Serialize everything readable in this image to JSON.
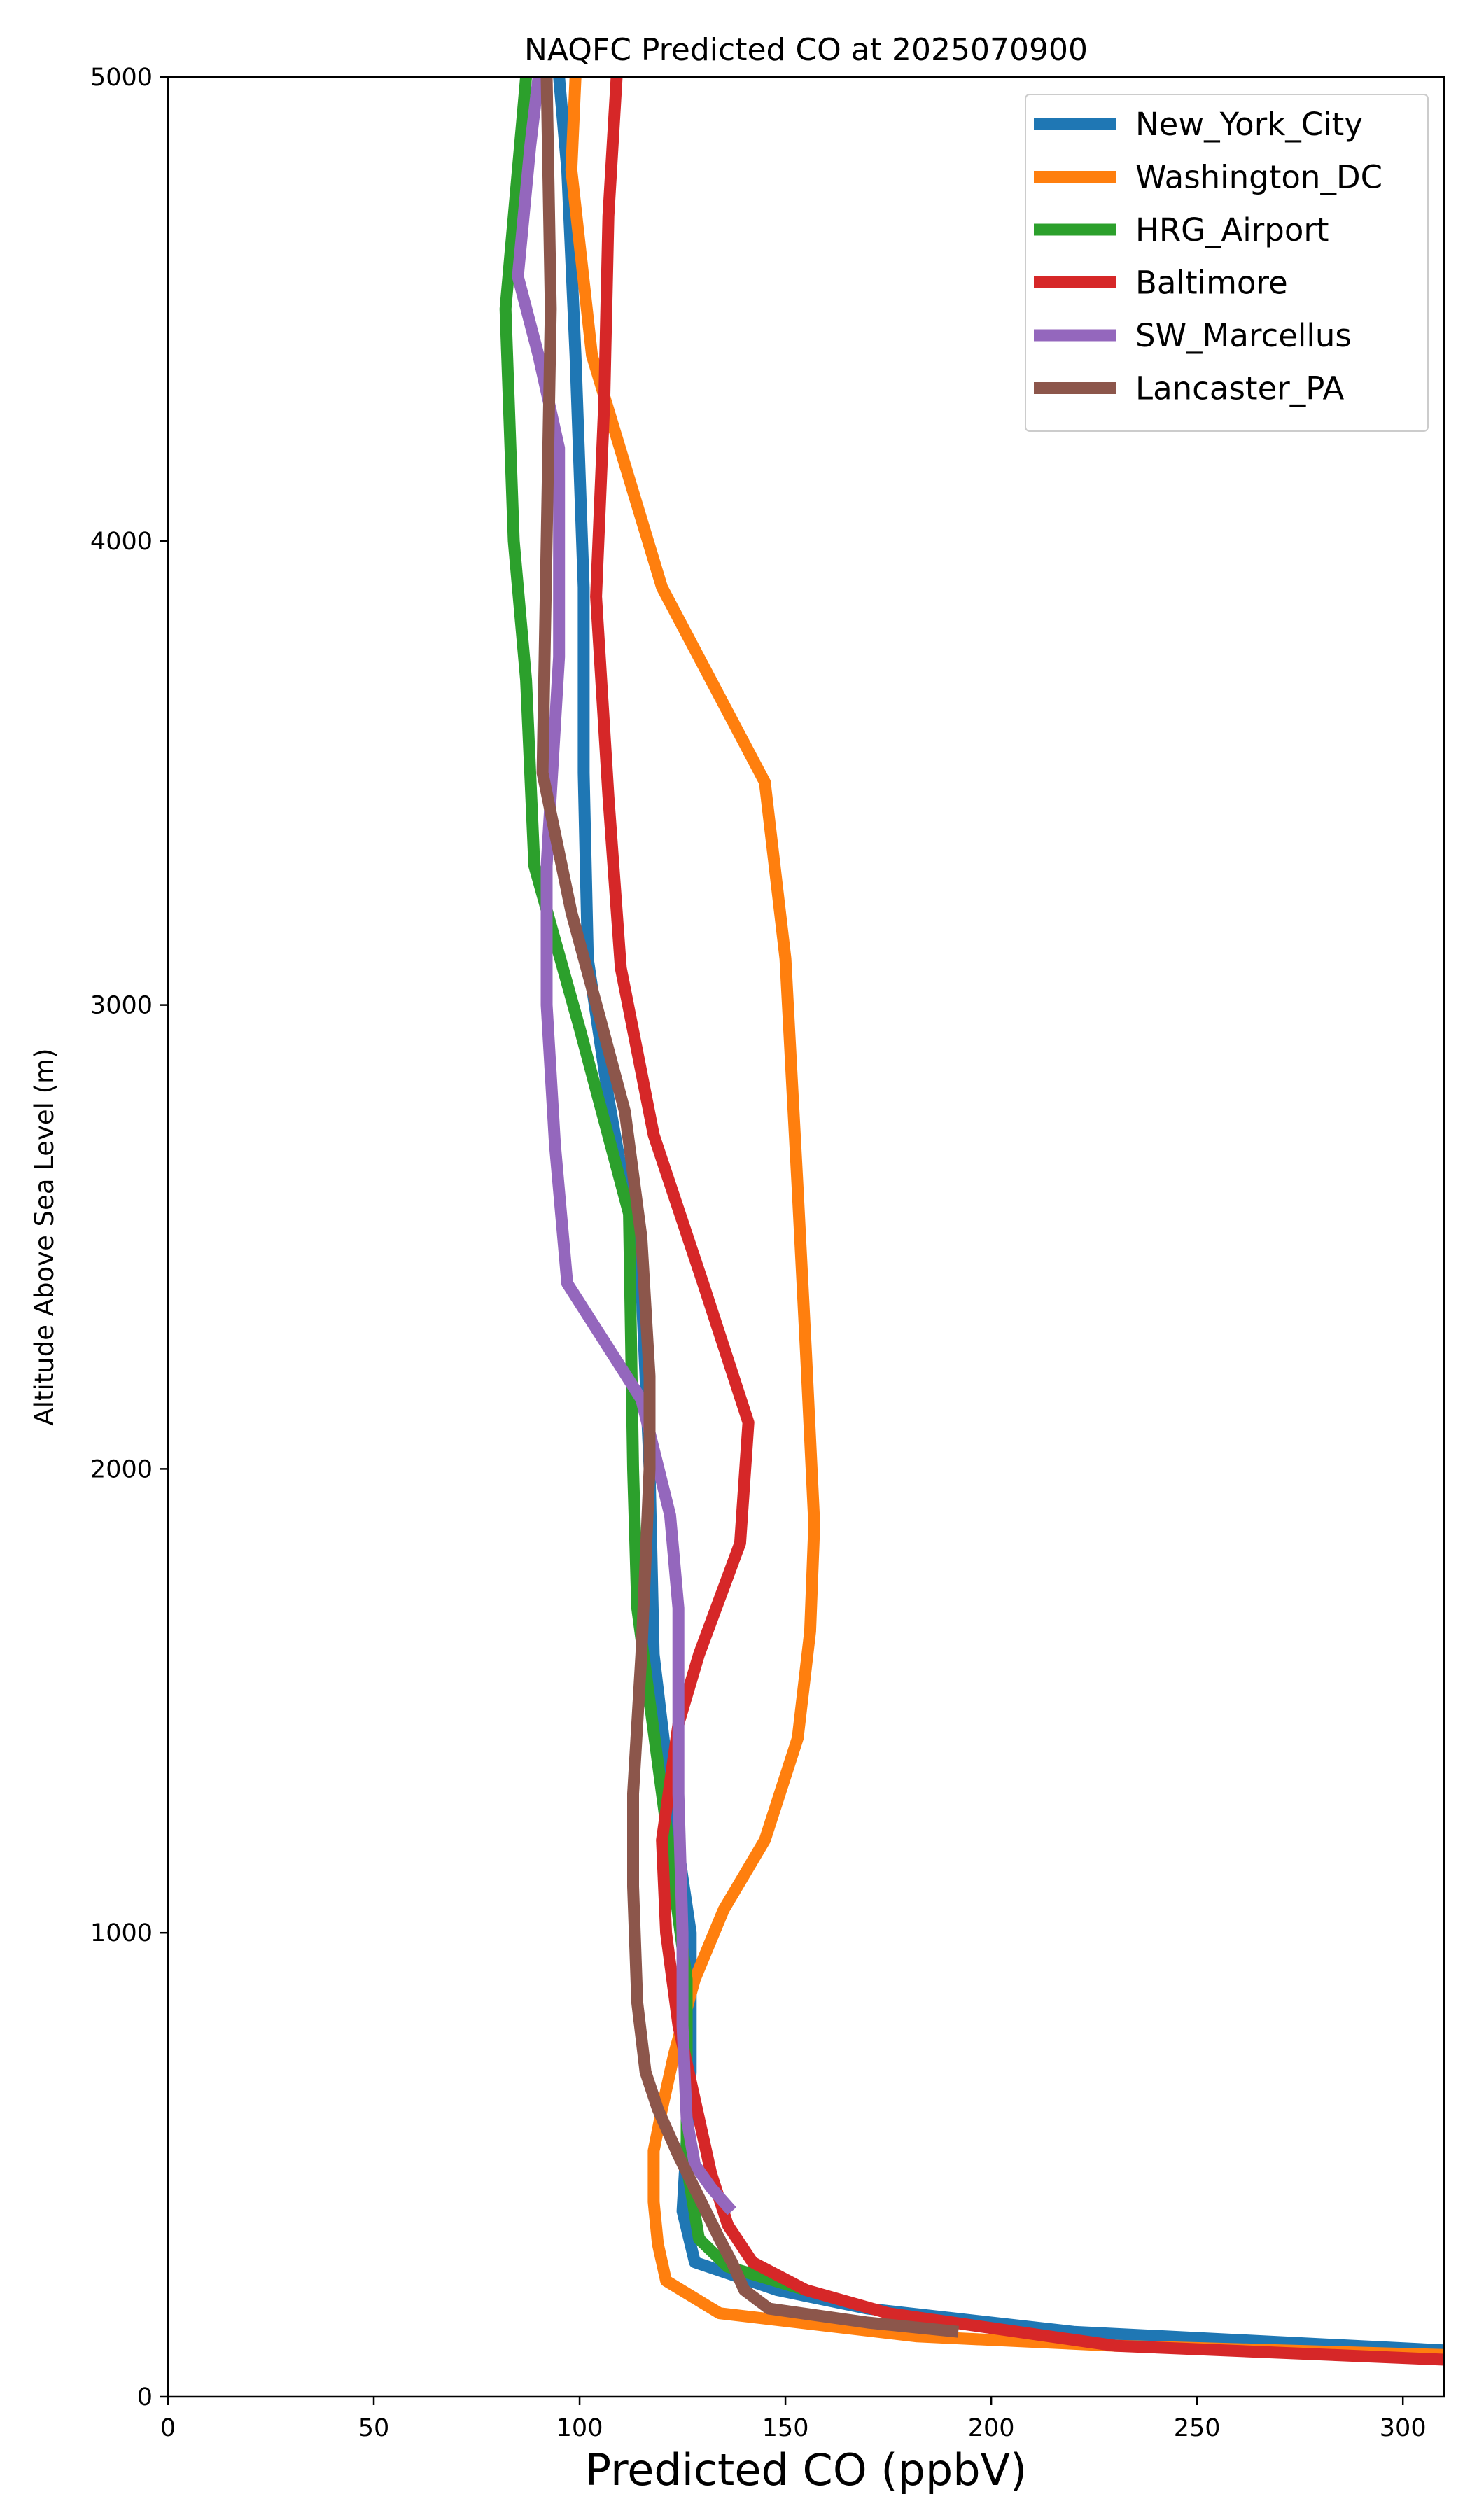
{
  "chart_data": {
    "type": "line",
    "title": "NAQFC Predicted CO at 2025070900",
    "xlabel": "Predicted CO (ppbV)",
    "ylabel": "Altitude Above Sea Level (m)",
    "xlim": [
      0,
      310
    ],
    "ylim": [
      0,
      5000
    ],
    "x_ticks": [
      "0",
      "50",
      "100",
      "150",
      "200",
      "250",
      "300"
    ],
    "y_ticks": [
      "0",
      "1000",
      "2000",
      "3000",
      "4000",
      "5000"
    ],
    "grid": false,
    "legend_position": "top-right",
    "series": [
      {
        "name": "New_York_City",
        "color": "#1f77b4",
        "points": [
          [
            310,
            100
          ],
          [
            220,
            140
          ],
          [
            170,
            190
          ],
          [
            148,
            230
          ],
          [
            128,
            290
          ],
          [
            125,
            400
          ],
          [
            127,
            700
          ],
          [
            127,
            1000
          ],
          [
            122,
            1300
          ],
          [
            118,
            1600
          ],
          [
            117,
            2000
          ],
          [
            115,
            2400
          ],
          [
            107,
            2800
          ],
          [
            102,
            3100
          ],
          [
            101,
            3500
          ],
          [
            101,
            3900
          ],
          [
            99,
            4400
          ],
          [
            97,
            4800
          ],
          [
            95,
            5000
          ]
        ]
      },
      {
        "name": "Washington_DC",
        "color": "#ff7f0e",
        "points": [
          [
            310,
            90
          ],
          [
            230,
            110
          ],
          [
            182,
            130
          ],
          [
            134,
            180
          ],
          [
            121,
            250
          ],
          [
            119,
            330
          ],
          [
            118,
            420
          ],
          [
            118,
            530
          ],
          [
            120,
            620
          ],
          [
            123,
            740
          ],
          [
            128,
            900
          ],
          [
            135,
            1050
          ],
          [
            145,
            1200
          ],
          [
            153,
            1420
          ],
          [
            156,
            1650
          ],
          [
            157,
            1880
          ],
          [
            155,
            2250
          ],
          [
            153,
            2600
          ],
          [
            150,
            3100
          ],
          [
            145,
            3480
          ],
          [
            120,
            3900
          ],
          [
            103,
            4400
          ],
          [
            98,
            4800
          ],
          [
            99,
            5000
          ]
        ]
      },
      {
        "name": "HRG_Airport",
        "color": "#2ca02c",
        "points": [
          [
            155,
            230
          ],
          [
            136,
            280
          ],
          [
            129,
            340
          ],
          [
            126,
            500
          ],
          [
            126,
            900
          ],
          [
            120,
            1300
          ],
          [
            114,
            1700
          ],
          [
            113,
            2000
          ],
          [
            112,
            2550
          ],
          [
            100,
            2950
          ],
          [
            89,
            3300
          ],
          [
            87,
            3700
          ],
          [
            84,
            4000
          ],
          [
            82,
            4500
          ],
          [
            87,
            5000
          ]
        ]
      },
      {
        "name": "Baltimore",
        "color": "#d62728",
        "points": [
          [
            310,
            80
          ],
          [
            230,
            110
          ],
          [
            175,
            180
          ],
          [
            155,
            230
          ],
          [
            142,
            290
          ],
          [
            136,
            370
          ],
          [
            132,
            480
          ],
          [
            129,
            600
          ],
          [
            124,
            800
          ],
          [
            121,
            1000
          ],
          [
            120,
            1200
          ],
          [
            124,
            1450
          ],
          [
            129,
            1600
          ],
          [
            139,
            1840
          ],
          [
            141,
            2100
          ],
          [
            130,
            2400
          ],
          [
            118,
            2720
          ],
          [
            110,
            3080
          ],
          [
            107,
            3450
          ],
          [
            104,
            3880
          ],
          [
            106,
            4300
          ],
          [
            107,
            4700
          ],
          [
            109,
            5000
          ]
        ]
      },
      {
        "name": "SW_Marcellus",
        "color": "#9467bd",
        "points": [
          [
            137,
            400
          ],
          [
            132,
            450
          ],
          [
            128,
            500
          ],
          [
            126,
            600
          ],
          [
            125,
            800
          ],
          [
            125,
            1000
          ],
          [
            124,
            1300
          ],
          [
            124,
            1700
          ],
          [
            122,
            1900
          ],
          [
            115,
            2150
          ],
          [
            97,
            2400
          ],
          [
            94,
            2700
          ],
          [
            92,
            3000
          ],
          [
            92,
            3300
          ],
          [
            95,
            3750
          ],
          [
            95,
            4200
          ],
          [
            90,
            4400
          ],
          [
            85,
            4570
          ],
          [
            88,
            4850
          ],
          [
            90,
            5000
          ]
        ]
      },
      {
        "name": "Lancaster_PA",
        "color": "#8c564b",
        "points": [
          [
            192,
            140
          ],
          [
            170,
            160
          ],
          [
            146,
            190
          ],
          [
            140,
            230
          ],
          [
            137,
            290
          ],
          [
            134,
            340
          ],
          [
            129,
            430
          ],
          [
            124,
            520
          ],
          [
            119,
            620
          ],
          [
            116,
            700
          ],
          [
            114,
            850
          ],
          [
            113,
            1100
          ],
          [
            113,
            1300
          ],
          [
            115,
            1600
          ],
          [
            116,
            1800
          ],
          [
            117,
            2000
          ],
          [
            117,
            2200
          ],
          [
            115,
            2500
          ],
          [
            111,
            2770
          ],
          [
            105,
            2970
          ],
          [
            98,
            3200
          ],
          [
            91,
            3500
          ],
          [
            92,
            4000
          ],
          [
            93,
            4500
          ],
          [
            92,
            5000
          ]
        ]
      }
    ]
  }
}
